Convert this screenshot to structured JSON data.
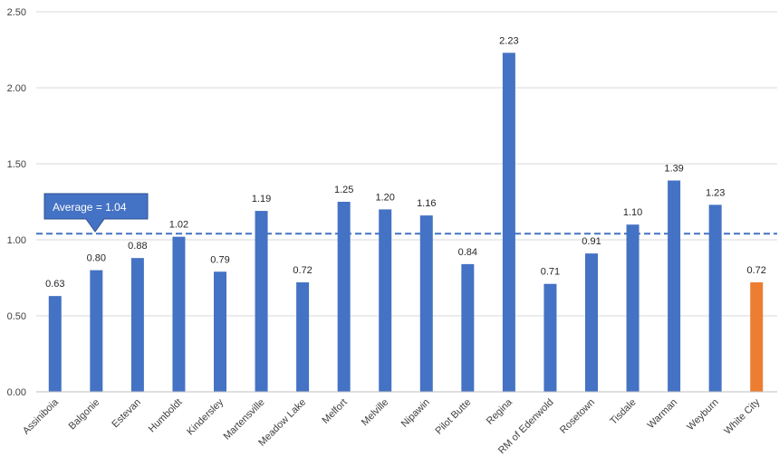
{
  "chart_data": {
    "type": "bar",
    "title": "",
    "xlabel": "",
    "ylabel": "",
    "ylim": [
      0,
      2.5
    ],
    "yticks": [
      "0.00",
      "0.50",
      "1.00",
      "1.50",
      "2.00",
      "2.50"
    ],
    "ytick_values": [
      0,
      0.5,
      1.0,
      1.5,
      2.0,
      2.5
    ],
    "grid": "horizontal",
    "legend": "none",
    "categories": [
      "Assiniboia",
      "Balgonie",
      "Estevan",
      "Humboldt",
      "Kindersley",
      "Martensville",
      "Meadow Lake",
      "Melfort",
      "Melville",
      "Nipawin",
      "Pilot Butte",
      "Regina",
      "RM of Edenwold",
      "Rosetown",
      "Tisdale",
      "Warman",
      "Weyburn",
      "White City"
    ],
    "values": [
      0.63,
      0.8,
      0.88,
      1.02,
      0.79,
      1.19,
      0.72,
      1.25,
      1.2,
      1.16,
      0.84,
      2.23,
      0.71,
      0.91,
      1.1,
      1.39,
      1.23,
      0.72
    ],
    "data_labels": [
      "0.63",
      "0.80",
      "0.88",
      "1.02",
      "0.79",
      "1.19",
      "0.72",
      "1.25",
      "1.20",
      "1.16",
      "0.84",
      "2.23",
      "0.71",
      "0.91",
      "1.10",
      "1.39",
      "1.23",
      "0.72"
    ],
    "highlight_category": "White City",
    "average": {
      "value": 1.04,
      "label": "Average = 1.04",
      "line_style": "dashed"
    },
    "colors": {
      "bar": "#4472C4",
      "highlight": "#ED7D31",
      "average_line": "#4472C4",
      "callout_fill": "#4472C4",
      "grid": "#D9D9D9"
    }
  }
}
